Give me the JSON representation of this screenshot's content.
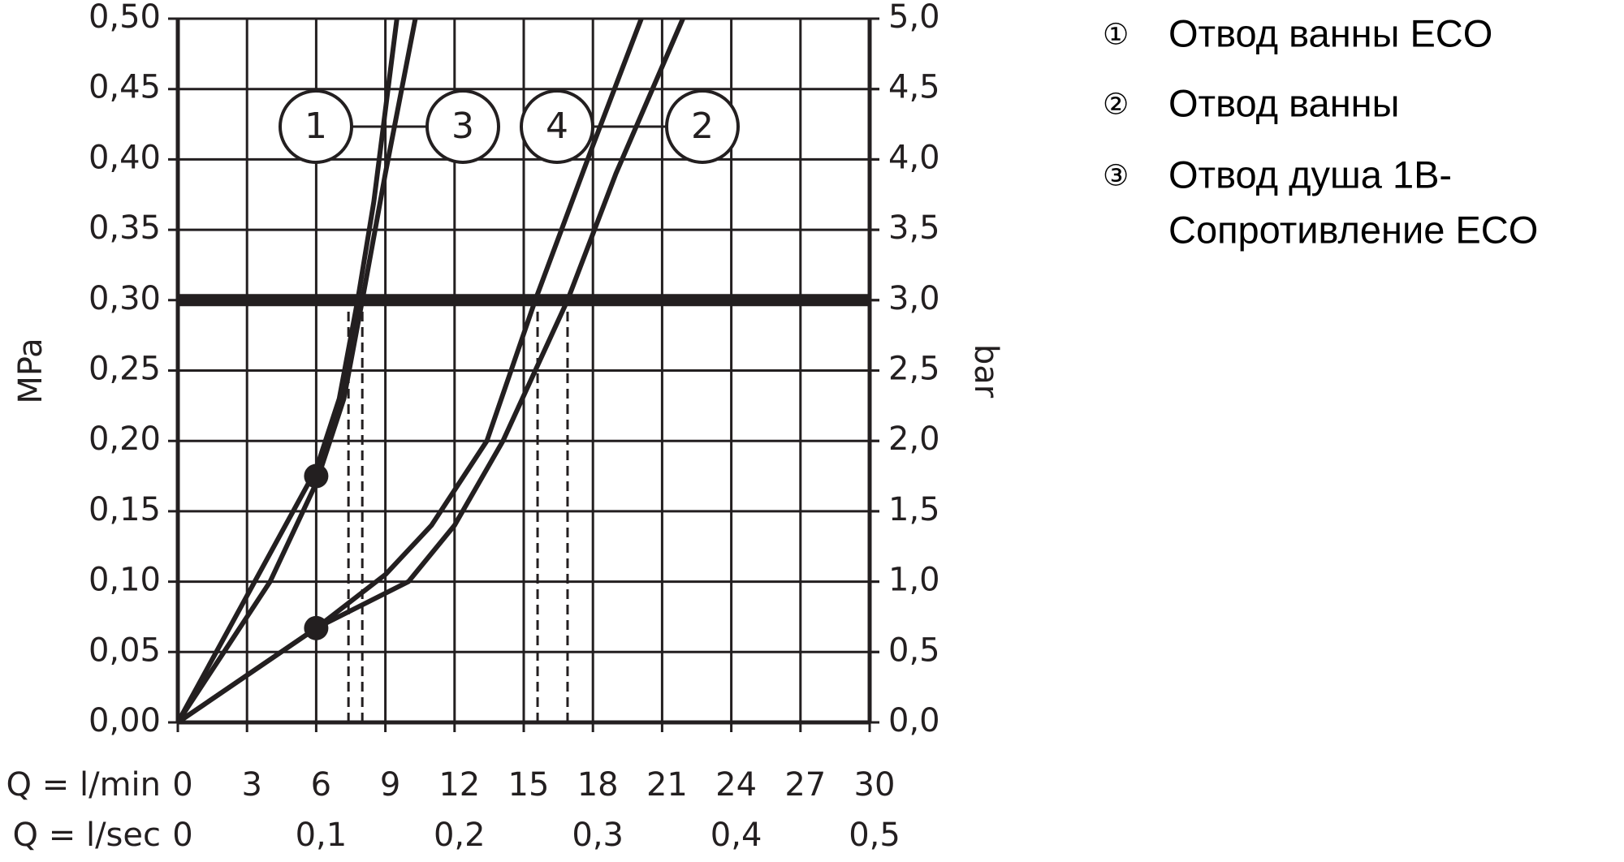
{
  "chart_data": {
    "type": "line",
    "ylabel": "MPa",
    "y2label": "bar",
    "xlabel": "Q = l/min",
    "x2label": "Q = l/sec",
    "xlim": [
      0,
      30
    ],
    "xticks": [
      0,
      3,
      6,
      9,
      12,
      15,
      18,
      21,
      24,
      27,
      30
    ],
    "x2lim": [
      0,
      0.5
    ],
    "x2ticks": [
      0,
      {
        "value": 0.1,
        "label": "0,1"
      },
      {
        "value": 0.2,
        "label": "0,2"
      },
      {
        "value": 0.3,
        "label": "0,3"
      },
      {
        "value": 0.4,
        "label": "0,4"
      },
      {
        "value": 0.5,
        "label": "0,5"
      }
    ],
    "ylim": [
      0,
      0.5
    ],
    "yticks": [
      {
        "value": 0,
        "label": "0,00"
      },
      {
        "value": 0.05,
        "label": "0,05"
      },
      {
        "value": 0.1,
        "label": "0,10"
      },
      {
        "value": 0.15,
        "label": "0,15"
      },
      {
        "value": 0.2,
        "label": "0,20"
      },
      {
        "value": 0.25,
        "label": "0,25"
      },
      {
        "value": 0.3,
        "label": "0,30"
      },
      {
        "value": 0.35,
        "label": "0,35"
      },
      {
        "value": 0.4,
        "label": "0,40"
      },
      {
        "value": 0.45,
        "label": "0,45"
      },
      {
        "value": 0.5,
        "label": "0,50"
      }
    ],
    "y2lim": [
      0,
      5
    ],
    "y2ticks": [
      {
        "value": 0,
        "label": "0,0"
      },
      {
        "value": 0.5,
        "label": "0,5"
      },
      {
        "value": 1,
        "label": "1,0"
      },
      {
        "value": 1.5,
        "label": "1,5"
      },
      {
        "value": 2,
        "label": "2,0"
      },
      {
        "value": 2.5,
        "label": "2,5"
      },
      {
        "value": 3,
        "label": "3,0"
      },
      {
        "value": 3.5,
        "label": "3,5"
      },
      {
        "value": 4,
        "label": "4,0"
      },
      {
        "value": 4.5,
        "label": "4,5"
      },
      {
        "value": 5,
        "label": "5,0"
      }
    ],
    "grid": true,
    "series": [
      {
        "name": "1",
        "color": "#231f20",
        "x": [
          0,
          2,
          4,
          6,
          7,
          7.8,
          8.5,
          9.5
        ],
        "values": [
          0,
          0.06,
          0.12,
          0.18,
          0.23,
          0.3,
          0.37,
          0.5
        ]
      },
      {
        "name": "2",
        "color": "#231f20",
        "x": [
          0,
          6,
          10,
          12,
          14.1,
          16.9,
          19,
          21.9
        ],
        "values": [
          0,
          0.067,
          0.1,
          0.14,
          0.2,
          0.3,
          0.39,
          0.5
        ]
      },
      {
        "name": "3",
        "color": "#231f20",
        "x": [
          0,
          2,
          4,
          6,
          7.2,
          8,
          9,
          10.3
        ],
        "values": [
          0,
          0.05,
          0.1,
          0.17,
          0.23,
          0.3,
          0.39,
          0.5
        ]
      },
      {
        "name": "4",
        "color": "#231f20",
        "x": [
          0,
          6,
          9,
          11,
          13.4,
          15.5,
          18,
          20.1
        ],
        "values": [
          0,
          0.067,
          0.105,
          0.14,
          0.2,
          0.3,
          0.41,
          0.5
        ]
      }
    ],
    "markers": [
      {
        "x": 6,
        "y": 0.175
      },
      {
        "x": 6,
        "y": 0.067
      }
    ],
    "reference_line": 0.3,
    "drop_lines": [
      7.4,
      8,
      15.6,
      16.9
    ],
    "legend": [
      {
        "symbol": "①",
        "lines": [
          "Отвод ванны ECO"
        ]
      },
      {
        "symbol": "②",
        "lines": [
          "Отвод ванны"
        ]
      },
      {
        "symbol": "③",
        "lines": [
          "Отвод душа 1B-",
          "Сопротивление  ECO"
        ]
      }
    ]
  }
}
